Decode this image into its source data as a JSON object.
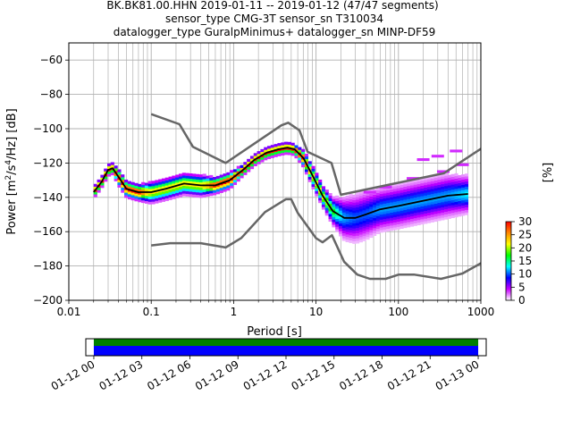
{
  "title_lines": [
    "BK.BK81.00.HHN   2019-01-11 -- 2019-01-12  (47/47 segments)",
    "sensor_type CMG-3T sensor_sn T310034",
    "datalogger_type GuralpMinimus+ datalogger_sn MINP-DF59"
  ],
  "colors": {
    "noise_models": "#666666",
    "mean_curve": "#000000",
    "grid": "#b0b0b0",
    "timeline_green": "#008000",
    "timeline_blue": "#0000ff"
  },
  "chart_data": [
    {
      "type": "heatmap",
      "subtype": "probabilistic-psd",
      "xlabel": "Period [s]",
      "ylabel": "Power [m^2/s^4/Hz] [dB]",
      "xscale": "log",
      "xlim": [
        0.01,
        1000
      ],
      "ylim": [
        -200,
        -50
      ],
      "xticks": [
        {
          "value": 0.01,
          "label": "0.01"
        },
        {
          "value": 0.1,
          "label": "0.1"
        },
        {
          "value": 1,
          "label": "1"
        },
        {
          "value": 10,
          "label": "10"
        },
        {
          "value": 100,
          "label": "100"
        },
        {
          "value": 1000,
          "label": "1000"
        }
      ],
      "yticks": [
        -60,
        -80,
        -100,
        -120,
        -140,
        -160,
        -180,
        -200
      ],
      "grid": true,
      "colorbar": {
        "label": "[%]",
        "ticks": [
          0,
          5,
          10,
          15,
          20,
          25,
          30
        ],
        "range": [
          0,
          30
        ],
        "stops": [
          "#ffffff",
          "#c800ff",
          "#0000ff",
          "#00ffff",
          "#00ff00",
          "#ffff00",
          "#ff8800",
          "#ff0000"
        ]
      },
      "high_noise_model": {
        "period": [
          0.1,
          0.22,
          0.32,
          0.8,
          3.8,
          4.6,
          6.3,
          7.9,
          15.4,
          20,
          354.8,
          10000
        ],
        "power": [
          -91.5,
          -97.4,
          -110.5,
          -120,
          -98,
          -96.5,
          -101,
          -113.5,
          -120,
          -138.5,
          -126,
          -80
        ]
      },
      "low_noise_model": {
        "period": [
          0.1,
          0.17,
          0.4,
          0.8,
          1.24,
          2.4,
          4.3,
          5,
          6,
          10,
          12,
          15.6,
          21.9,
          31.6,
          45,
          70,
          101,
          154,
          328,
          600,
          10000
        ],
        "power": [
          -168,
          -166.7,
          -166.7,
          -169.2,
          -163.7,
          -148.6,
          -141.1,
          -141.1,
          -149,
          -163.8,
          -166.2,
          -162.1,
          -177.5,
          -185,
          -187.5,
          -187.5,
          -185,
          -185,
          -187.5,
          -184.4,
          -151.5
        ]
      },
      "mean_curve": {
        "period": [
          0.02,
          0.025,
          0.03,
          0.034,
          0.04,
          0.05,
          0.07,
          0.1,
          0.15,
          0.25,
          0.4,
          0.6,
          0.9,
          1.3,
          1.8,
          2.5,
          3.5,
          4.5,
          5.5,
          7,
          9,
          12,
          16,
          22,
          30,
          40,
          60,
          100,
          200,
          400,
          700
        ],
        "power": [
          -137,
          -131,
          -124,
          -123,
          -128,
          -135,
          -137,
          -137,
          -135,
          -132,
          -133,
          -133,
          -130,
          -124,
          -118,
          -114,
          -112,
          -111,
          -112,
          -117,
          -127,
          -139,
          -148,
          -152,
          -152,
          -150,
          -147,
          -145,
          -142,
          -139,
          -138
        ]
      },
      "spread_halfwidth_db": [
        2,
        2,
        2,
        2,
        3,
        3,
        3,
        4,
        4,
        4,
        4,
        3,
        3,
        2,
        2,
        2,
        2,
        2,
        2,
        3,
        4,
        4,
        5,
        8,
        9,
        9,
        8,
        8,
        8,
        8,
        7
      ],
      "outliers": [
        {
          "period": 200,
          "power": -118
        },
        {
          "period": 300,
          "power": -116
        },
        {
          "period": 500,
          "power": -113
        },
        {
          "period": 600,
          "power": -121
        },
        {
          "period": 70,
          "power": -134
        },
        {
          "period": 45,
          "power": -137
        },
        {
          "period": 150,
          "power": -129
        },
        {
          "period": 350,
          "power": -125
        }
      ]
    },
    {
      "type": "timeline",
      "xticks": [
        "01-12 00",
        "01-12 03",
        "01-12 06",
        "01-12 09",
        "01-12 12",
        "01-12 15",
        "01-12 18",
        "01-12 21",
        "01-13 00"
      ],
      "xrange_hours": [
        -0.5,
        24.5
      ],
      "coverage_hours": [
        0,
        24
      ]
    }
  ]
}
